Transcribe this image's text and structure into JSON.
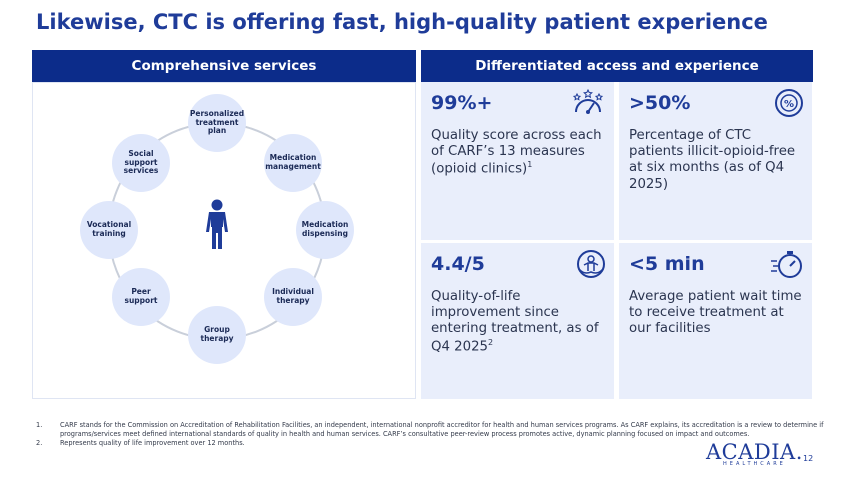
{
  "title": "Likewise, CTC is offering fast, high-quality patient experience",
  "left_header": "Comprehensive services",
  "right_header": "Differentiated access and experience",
  "services": [
    {
      "label": "Personalized treatment plan"
    },
    {
      "label": "Medication management"
    },
    {
      "label": "Medication dispensing"
    },
    {
      "label": "Individual therapy"
    },
    {
      "label": "Group therapy"
    },
    {
      "label": "Peer support"
    },
    {
      "label": "Vocational training"
    },
    {
      "label": "Social support services"
    }
  ],
  "cards": [
    {
      "stat": "99%+",
      "desc_main": "Quality score across each of CARF’s 13 measures (opioid clinics)",
      "sup": "1",
      "icon": "gauge-stars-icon"
    },
    {
      "stat": ">50%",
      "desc_main": "Percentage of CTC patients illicit-opioid-free at six months (as of Q4 2025)",
      "sup": "",
      "icon": "percent-badge-icon"
    },
    {
      "stat": "4.4/5",
      "desc_main": "Quality-of-life improvement since entering treatment, as of Q4 2025",
      "sup": "2",
      "icon": "wellbeing-icon"
    },
    {
      "stat": "<5 min",
      "desc_main": "Average patient wait time to receive treatment at our facilities",
      "sup": "",
      "icon": "stopwatch-icon"
    }
  ],
  "footnotes": [
    {
      "num": "1.",
      "text": "CARF stands for the Commission on Accreditation of Rehabilitation Facilities, an independent, international nonprofit accreditor for health and human services programs. As CARF explains, its accreditation is a review to determine if programs/services meet defined international standards of quality in health and human services. CARF’s consultative peer-review process promotes active, dynamic planning focused on impact and outcomes."
    },
    {
      "num": "2.",
      "text": "Represents quality of life improvement over 12 months."
    }
  ],
  "logo": {
    "main": "ACADIA.",
    "sub": "HEALTHCARE"
  },
  "page_number": "12",
  "colors": {
    "brand": "#1f3c99",
    "header_bg": "#0c2c8a",
    "card_bg": "#e9eefb",
    "node_bg": "#dfe7fb"
  }
}
